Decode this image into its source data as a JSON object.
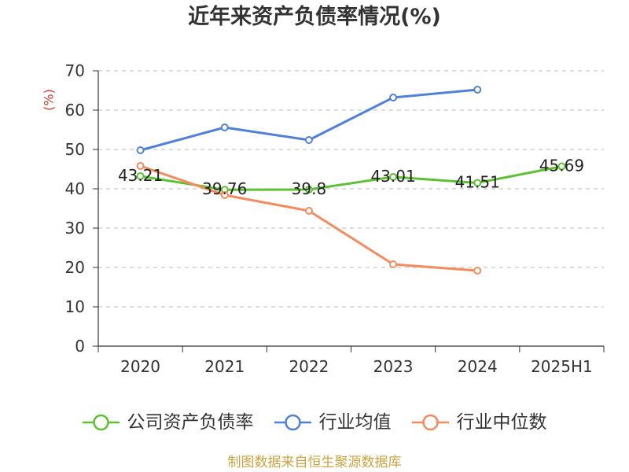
{
  "chart_data": {
    "type": "line",
    "title": "近年来资产负债率情况(%)",
    "xlabel": "",
    "ylabel": "(%)",
    "categories": [
      "2020",
      "2021",
      "2022",
      "2023",
      "2024",
      "2025H1"
    ],
    "ylim": [
      0,
      70
    ],
    "yticks": [
      0,
      10,
      20,
      30,
      40,
      50,
      60,
      70
    ],
    "grid": true,
    "legend": "bottom",
    "series": [
      {
        "name": "公司资产负债率",
        "color": "#5dc232",
        "show_labels": true,
        "values": [
          43.21,
          39.76,
          39.8,
          43.01,
          41.51,
          45.69
        ]
      },
      {
        "name": "行业均值",
        "color": "#4f81d8",
        "show_labels": false,
        "values": [
          49.8,
          55.6,
          52.4,
          63.2,
          65.2,
          null
        ]
      },
      {
        "name": "行业中位数",
        "color": "#f58b5c",
        "show_labels": false,
        "values": [
          45.8,
          38.4,
          34.4,
          20.8,
          19.2,
          null
        ]
      }
    ]
  },
  "source_note": "制图数据来自恒生聚源数据库",
  "colors": {
    "axis": "#333333",
    "grid": "#bbbbbb",
    "ylabel": "#d9342b",
    "source_note": "#c9a43f"
  }
}
